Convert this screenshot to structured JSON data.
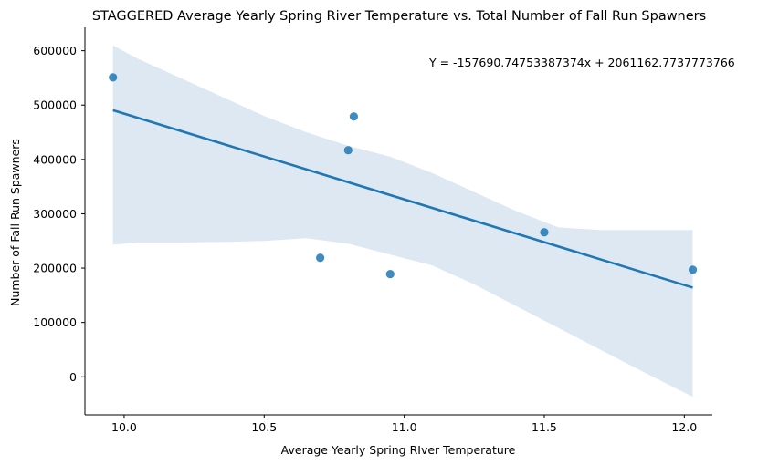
{
  "chart_data": {
    "type": "scatter",
    "title": "STAGGERED Average Yearly Spring River Temperature vs. Total Number of Fall Run Spawners",
    "xlabel": "Average Yearly Spring RIver Temperature",
    "ylabel": "Number of Fall Run Spawners",
    "annotation": "Y = -157690.74753387374x + 2061162.7737773766",
    "xlim": [
      9.86,
      12.1
    ],
    "ylim": [
      -70000,
      643000
    ],
    "x_ticks": [
      10.0,
      10.5,
      11.0,
      11.5,
      12.0
    ],
    "x_tick_labels": [
      "10.0",
      "10.5",
      "11.0",
      "11.5",
      "12.0"
    ],
    "y_ticks": [
      0,
      100000,
      200000,
      300000,
      400000,
      500000,
      600000
    ],
    "y_tick_labels": [
      "0",
      "100000",
      "200000",
      "300000",
      "400000",
      "500000",
      "600000"
    ],
    "points": [
      {
        "x": 9.96,
        "y": 551000
      },
      {
        "x": 10.7,
        "y": 219000
      },
      {
        "x": 10.8,
        "y": 417000
      },
      {
        "x": 10.82,
        "y": 479000
      },
      {
        "x": 10.95,
        "y": 189000
      },
      {
        "x": 11.5,
        "y": 266000
      },
      {
        "x": 12.03,
        "y": 197000
      }
    ],
    "regression": {
      "slope": -157690.74753387374,
      "intercept": 2061162.7737773766
    },
    "confidence_band": {
      "x": [
        9.96,
        10.05,
        10.2,
        10.35,
        10.5,
        10.65,
        10.8,
        10.95,
        11.1,
        11.25,
        11.4,
        11.55,
        11.7,
        11.85,
        12.03
      ],
      "upper": [
        610000,
        585000,
        550000,
        515000,
        480000,
        450000,
        425000,
        405000,
        375000,
        340000,
        305000,
        275000,
        270000,
        270000,
        270000
      ],
      "lower": [
        243000,
        247000,
        247000,
        248000,
        250000,
        255000,
        245000,
        225000,
        205000,
        170000,
        130000,
        90000,
        50000,
        10000,
        -37000
      ]
    },
    "colors": {
      "points": "#1f77b4",
      "line": "#1f77b4",
      "band": "#dde8f3"
    },
    "grid": false,
    "legend": "none"
  }
}
